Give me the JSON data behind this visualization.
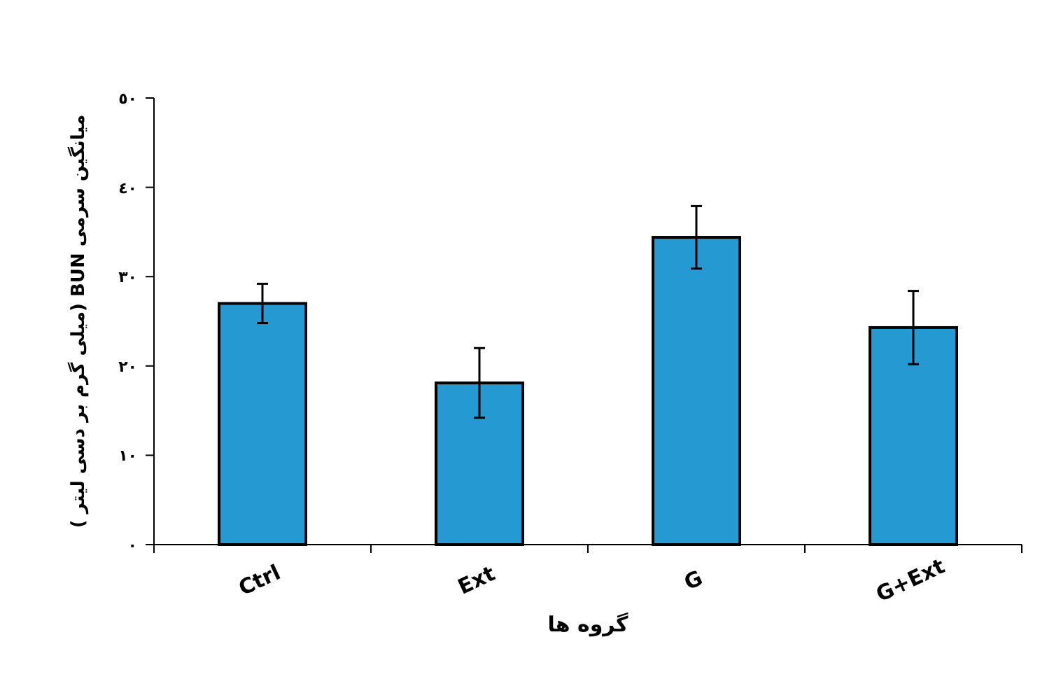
{
  "chart_data": {
    "type": "bar",
    "categories": [
      "Ctrl",
      "Ext",
      "G",
      "G+Ext"
    ],
    "values": [
      27.0,
      18.1,
      34.4,
      24.3
    ],
    "errors": [
      2.2,
      3.9,
      3.5,
      4.1
    ],
    "color": "#2599d2",
    "xlabel": "گروه ها",
    "ylabel": "میانگین سرمی BUN (میلی گرم بر دسی لیتر )",
    "ylim": [
      0,
      50
    ],
    "yticks": [
      {
        "value": 0,
        "label": "٠"
      },
      {
        "value": 10,
        "label": "١٠"
      },
      {
        "value": 20,
        "label": "٢٠"
      },
      {
        "value": 30,
        "label": "٣٠"
      },
      {
        "value": 40,
        "label": "٤٠"
      },
      {
        "value": 50,
        "label": "٥٠"
      }
    ],
    "grid": false
  }
}
